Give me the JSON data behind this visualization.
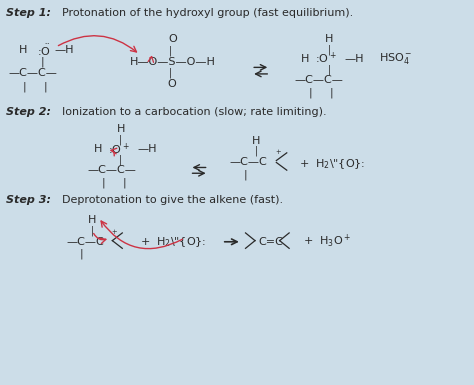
{
  "background_color": "#ccdde8",
  "text_color": "#2a2a2a",
  "arrow_color": "#cc3344",
  "fig_width": 4.74,
  "fig_height": 3.85,
  "dpi": 100,
  "step1_bold": "Step 1:",
  "step1_rest": " Protonation of the hydroxyl group (fast equilibrium).",
  "step2_bold": "Step 2:",
  "step2_rest": " Ionization to a carbocation (slow; rate limiting).",
  "step3_bold": "Step 3:",
  "step3_rest": " Deprotonation to give the alkene (fast)."
}
